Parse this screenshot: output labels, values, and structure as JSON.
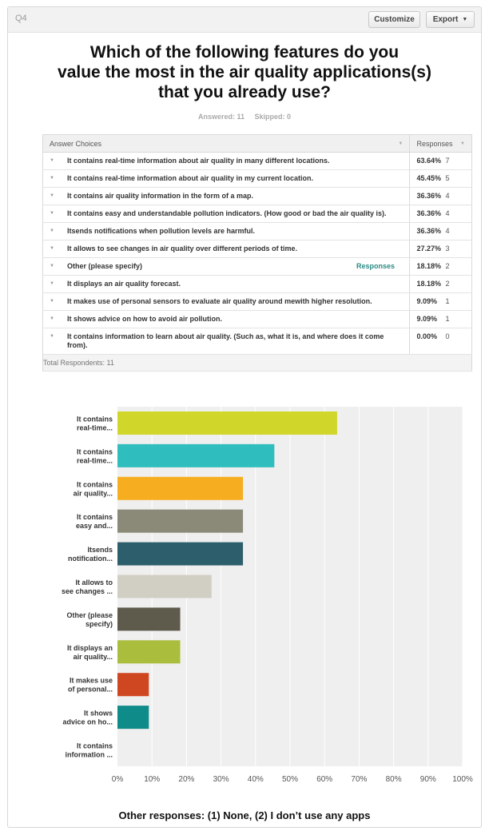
{
  "header": {
    "question_number": "Q4",
    "customize_label": "Customize",
    "export_label": "Export"
  },
  "question": {
    "title_lines": [
      "Which of the following features do you",
      "value the most in the air quality applications(s)",
      "that you already use?"
    ],
    "answered": "Answered: 11",
    "skipped": "Skipped: 0"
  },
  "table": {
    "col_answer": "Answer Choices",
    "col_responses": "Responses",
    "rows": [
      {
        "text": "It contains real-time information about air quality in many different locations.",
        "pct": "63.64%",
        "count": "7"
      },
      {
        "text": "It contains real-time information about air quality in my current location.",
        "pct": "45.45%",
        "count": "5"
      },
      {
        "text": "It contains air quality information in the form of a map.",
        "pct": "36.36%",
        "count": "4"
      },
      {
        "text": "It contains easy and understandable pollution indicators. (How good or bad the air quality is).",
        "pct": "36.36%",
        "count": "4"
      },
      {
        "text": "Itsends notifications when pollution levels are harmful.",
        "pct": "36.36%",
        "count": "4"
      },
      {
        "text": "It allows to see changes in air quality over different periods of time.",
        "pct": "27.27%",
        "count": "3"
      },
      {
        "text": "Other (please specify)",
        "pct": "18.18%",
        "count": "2",
        "link": "Responses"
      },
      {
        "text": "It displays an air quality forecast.",
        "pct": "18.18%",
        "count": "2"
      },
      {
        "text": "It makes use of personal sensors to evaluate air quality around mewith higher resolution.",
        "pct": "9.09%",
        "count": "1"
      },
      {
        "text": "It shows advice on how to avoid air pollution.",
        "pct": "9.09%",
        "count": "1"
      },
      {
        "text": "It contains information to learn about air quality. (Such as, what it is, and where does it come from).",
        "pct": "0.00%",
        "count": "0"
      }
    ],
    "total": "Total Respondents: 11"
  },
  "chart_data": {
    "type": "bar",
    "orientation": "horizontal",
    "categories": [
      [
        "It contains",
        "real-time..."
      ],
      [
        "It contains",
        "real-time..."
      ],
      [
        "It contains",
        "air quality..."
      ],
      [
        "It contains",
        "easy and..."
      ],
      [
        "Itsends",
        "notification..."
      ],
      [
        "It allows to",
        "see changes ..."
      ],
      [
        "Other (please",
        "specify)"
      ],
      [
        "It displays an",
        "air quality..."
      ],
      [
        "It makes use",
        "of personal..."
      ],
      [
        "It shows",
        "advice on ho..."
      ],
      [
        "It contains",
        "information ..."
      ]
    ],
    "values": [
      63.64,
      45.45,
      36.36,
      36.36,
      36.36,
      27.27,
      18.18,
      18.18,
      9.09,
      9.09,
      0
    ],
    "colors": [
      "#d0d72a",
      "#2fbdbd",
      "#f6ae20",
      "#8b8a78",
      "#2d5e6b",
      "#d1cfc3",
      "#5e5b4d",
      "#aabd3c",
      "#cf4720",
      "#0f8b89",
      "#999999"
    ],
    "xlim": [
      0,
      100
    ],
    "xticks": [
      "0%",
      "10%",
      "20%",
      "30%",
      "40%",
      "50%",
      "60%",
      "70%",
      "80%",
      "90%",
      "100%"
    ],
    "grid": true
  },
  "footer": {
    "text": "Other responses: (1) None, (2) I don’t use any apps"
  }
}
